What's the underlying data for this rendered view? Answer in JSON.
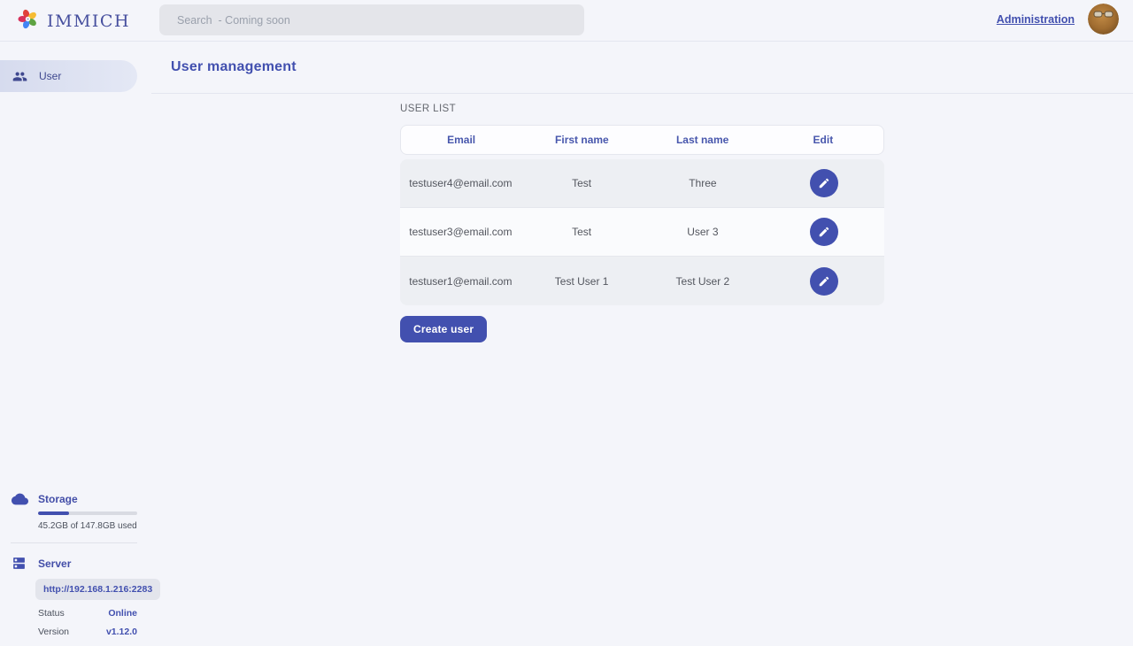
{
  "header": {
    "logo_text": "IMMICH",
    "search_placeholder": "Search  - Coming soon",
    "admin_link": "Administration"
  },
  "sidebar": {
    "items": [
      {
        "label": "User",
        "active": true
      }
    ]
  },
  "page": {
    "title": "User management"
  },
  "user_list": {
    "section_title": "USER LIST",
    "columns": [
      "Email",
      "First name",
      "Last name",
      "Edit"
    ],
    "rows": [
      {
        "email": "testuser4@email.com",
        "first_name": "Test",
        "last_name": "Three"
      },
      {
        "email": "testuser3@email.com",
        "first_name": "Test",
        "last_name": "User 3"
      },
      {
        "email": "testuser1@email.com",
        "first_name": "Test User 1",
        "last_name": "Test User 2"
      }
    ],
    "create_button": "Create user"
  },
  "status_panel": {
    "storage": {
      "label": "Storage",
      "usage_text": "45.2GB of 147.8GB used",
      "percent_used": 31
    },
    "server": {
      "label": "Server",
      "url": "http://192.168.1.216:2283",
      "status_label": "Status",
      "status_value": "Online",
      "version_label": "Version",
      "version_value": "v1.12.0"
    }
  },
  "colors": {
    "accent": "#4250af",
    "online": "#4250af",
    "page_bg": "#f4f5fa"
  }
}
